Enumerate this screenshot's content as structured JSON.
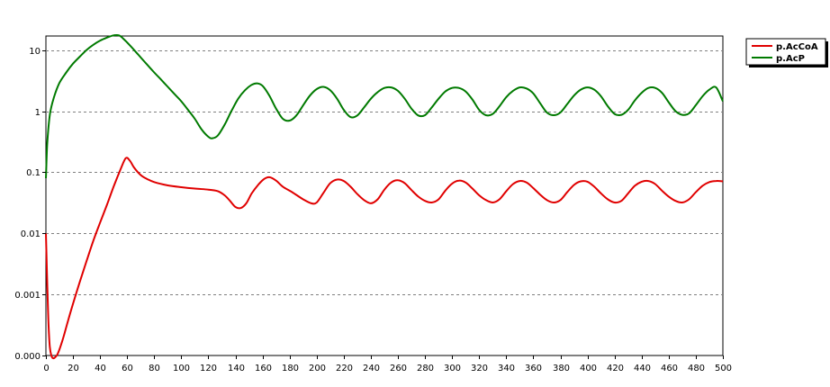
{
  "chart_data": {
    "type": "line",
    "title": "",
    "xlabel": "",
    "ylabel": "",
    "y_scale": "log",
    "xlim": [
      0,
      500
    ],
    "ylim": [
      0.0001,
      17
    ],
    "grid": "horizontal dashed",
    "legend_position": "top-right, outside plot",
    "x_ticks": [
      0,
      20,
      40,
      60,
      80,
      100,
      120,
      140,
      160,
      180,
      200,
      220,
      240,
      260,
      280,
      300,
      320,
      340,
      360,
      380,
      400,
      420,
      440,
      460,
      480,
      500
    ],
    "y_ticks": [
      {
        "value": 0.0001,
        "label": "0.000"
      },
      {
        "value": 0.001,
        "label": "0.001"
      },
      {
        "value": 0.01,
        "label": "0.01"
      },
      {
        "value": 0.1,
        "label": "0.1"
      },
      {
        "value": 1,
        "label": "1"
      },
      {
        "value": 10,
        "label": "10"
      }
    ],
    "series": [
      {
        "name": "p.AcCoA",
        "color": "#e00000",
        "points": [
          [
            0,
            0.01
          ],
          [
            2,
            0.0003
          ],
          [
            4,
            0.0001
          ],
          [
            8,
            0.0001
          ],
          [
            12,
            0.00017
          ],
          [
            16,
            0.00035
          ],
          [
            20,
            0.0007
          ],
          [
            25,
            0.0016
          ],
          [
            30,
            0.0035
          ],
          [
            35,
            0.0075
          ],
          [
            40,
            0.015
          ],
          [
            45,
            0.029
          ],
          [
            50,
            0.058
          ],
          [
            55,
            0.11
          ],
          [
            59,
            0.17
          ],
          [
            62,
            0.155
          ],
          [
            65,
            0.12
          ],
          [
            70,
            0.09
          ],
          [
            75,
            0.077
          ],
          [
            80,
            0.069
          ],
          [
            90,
            0.061
          ],
          [
            100,
            0.057
          ],
          [
            110,
            0.054
          ],
          [
            120,
            0.052
          ],
          [
            127,
            0.049
          ],
          [
            132,
            0.042
          ],
          [
            136,
            0.034
          ],
          [
            140,
            0.027
          ],
          [
            144,
            0.026
          ],
          [
            148,
            0.031
          ],
          [
            152,
            0.045
          ],
          [
            157,
            0.063
          ],
          [
            161,
            0.077
          ],
          [
            165,
            0.083
          ],
          [
            170,
            0.073
          ],
          [
            175,
            0.058
          ],
          [
            182,
            0.047
          ],
          [
            190,
            0.036
          ],
          [
            196,
            0.031
          ],
          [
            200,
            0.032
          ],
          [
            205,
            0.046
          ],
          [
            210,
            0.066
          ],
          [
            215,
            0.076
          ],
          [
            220,
            0.072
          ],
          [
            225,
            0.058
          ],
          [
            230,
            0.044
          ],
          [
            235,
            0.035
          ],
          [
            240,
            0.031
          ],
          [
            245,
            0.036
          ],
          [
            250,
            0.052
          ],
          [
            255,
            0.068
          ],
          [
            260,
            0.074
          ],
          [
            265,
            0.066
          ],
          [
            270,
            0.051
          ],
          [
            275,
            0.04
          ],
          [
            280,
            0.034
          ],
          [
            285,
            0.032
          ],
          [
            290,
            0.036
          ],
          [
            295,
            0.05
          ],
          [
            300,
            0.065
          ],
          [
            305,
            0.073
          ],
          [
            310,
            0.068
          ],
          [
            315,
            0.054
          ],
          [
            320,
            0.042
          ],
          [
            325,
            0.035
          ],
          [
            330,
            0.032
          ],
          [
            335,
            0.036
          ],
          [
            340,
            0.049
          ],
          [
            345,
            0.064
          ],
          [
            350,
            0.072
          ],
          [
            355,
            0.068
          ],
          [
            360,
            0.055
          ],
          [
            365,
            0.043
          ],
          [
            370,
            0.035
          ],
          [
            375,
            0.032
          ],
          [
            380,
            0.035
          ],
          [
            385,
            0.047
          ],
          [
            390,
            0.062
          ],
          [
            395,
            0.071
          ],
          [
            400,
            0.07
          ],
          [
            405,
            0.058
          ],
          [
            410,
            0.045
          ],
          [
            415,
            0.036
          ],
          [
            420,
            0.032
          ],
          [
            425,
            0.034
          ],
          [
            430,
            0.045
          ],
          [
            435,
            0.06
          ],
          [
            440,
            0.07
          ],
          [
            445,
            0.072
          ],
          [
            450,
            0.064
          ],
          [
            455,
            0.05
          ],
          [
            460,
            0.04
          ],
          [
            465,
            0.034
          ],
          [
            470,
            0.032
          ],
          [
            475,
            0.036
          ],
          [
            480,
            0.047
          ],
          [
            485,
            0.06
          ],
          [
            490,
            0.069
          ],
          [
            495,
            0.072
          ],
          [
            500,
            0.071
          ]
        ]
      },
      {
        "name": "p.AcP",
        "color": "#007a00",
        "points": [
          [
            0,
            0.08
          ],
          [
            1,
            0.3
          ],
          [
            3,
            0.9
          ],
          [
            6,
            1.7
          ],
          [
            10,
            2.9
          ],
          [
            15,
            4.3
          ],
          [
            20,
            6
          ],
          [
            25,
            7.8
          ],
          [
            30,
            10
          ],
          [
            35,
            12.2
          ],
          [
            40,
            14.3
          ],
          [
            45,
            16
          ],
          [
            50,
            17.4
          ],
          [
            54,
            17.4
          ],
          [
            57,
            15.5
          ],
          [
            62,
            12
          ],
          [
            68,
            8.5
          ],
          [
            75,
            5.7
          ],
          [
            80,
            4.3
          ],
          [
            85,
            3.3
          ],
          [
            90,
            2.5
          ],
          [
            95,
            1.9
          ],
          [
            100,
            1.45
          ],
          [
            105,
            1.05
          ],
          [
            110,
            0.75
          ],
          [
            115,
            0.5
          ],
          [
            120,
            0.38
          ],
          [
            123,
            0.36
          ],
          [
            127,
            0.4
          ],
          [
            132,
            0.6
          ],
          [
            137,
            1
          ],
          [
            142,
            1.6
          ],
          [
            147,
            2.2
          ],
          [
            152,
            2.7
          ],
          [
            156,
            2.85
          ],
          [
            160,
            2.6
          ],
          [
            165,
            1.8
          ],
          [
            170,
            1.1
          ],
          [
            175,
            0.75
          ],
          [
            180,
            0.7
          ],
          [
            185,
            0.85
          ],
          [
            190,
            1.25
          ],
          [
            195,
            1.8
          ],
          [
            200,
            2.3
          ],
          [
            205,
            2.5
          ],
          [
            210,
            2.2
          ],
          [
            215,
            1.6
          ],
          [
            220,
            1.05
          ],
          [
            225,
            0.8
          ],
          [
            230,
            0.85
          ],
          [
            235,
            1.15
          ],
          [
            240,
            1.6
          ],
          [
            245,
            2.05
          ],
          [
            250,
            2.4
          ],
          [
            255,
            2.45
          ],
          [
            260,
            2.15
          ],
          [
            265,
            1.6
          ],
          [
            270,
            1.1
          ],
          [
            275,
            0.85
          ],
          [
            280,
            0.86
          ],
          [
            285,
            1.15
          ],
          [
            290,
            1.6
          ],
          [
            295,
            2.1
          ],
          [
            300,
            2.4
          ],
          [
            305,
            2.4
          ],
          [
            310,
            2.1
          ],
          [
            315,
            1.55
          ],
          [
            320,
            1.05
          ],
          [
            325,
            0.86
          ],
          [
            330,
            0.9
          ],
          [
            335,
            1.2
          ],
          [
            340,
            1.7
          ],
          [
            345,
            2.15
          ],
          [
            350,
            2.45
          ],
          [
            355,
            2.35
          ],
          [
            360,
            1.95
          ],
          [
            365,
            1.35
          ],
          [
            370,
            0.95
          ],
          [
            375,
            0.86
          ],
          [
            380,
            0.95
          ],
          [
            385,
            1.3
          ],
          [
            390,
            1.8
          ],
          [
            395,
            2.25
          ],
          [
            400,
            2.45
          ],
          [
            405,
            2.25
          ],
          [
            410,
            1.75
          ],
          [
            415,
            1.2
          ],
          [
            420,
            0.9
          ],
          [
            425,
            0.87
          ],
          [
            430,
            1.05
          ],
          [
            435,
            1.5
          ],
          [
            440,
            2
          ],
          [
            445,
            2.4
          ],
          [
            450,
            2.4
          ],
          [
            455,
            2
          ],
          [
            460,
            1.4
          ],
          [
            465,
            1
          ],
          [
            470,
            0.87
          ],
          [
            475,
            0.92
          ],
          [
            480,
            1.25
          ],
          [
            485,
            1.75
          ],
          [
            490,
            2.25
          ],
          [
            495,
            2.45
          ],
          [
            500,
            1.45
          ]
        ]
      }
    ]
  }
}
